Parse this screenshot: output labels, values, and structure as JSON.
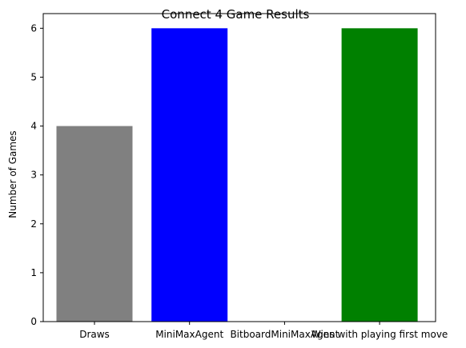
{
  "chart_data": {
    "type": "bar",
    "title": "Connect 4 Game Results",
    "xlabel": "",
    "ylabel": "Number of Games",
    "categories": [
      "Draws",
      "MiniMaxAgent",
      "BitboardMiniMaxAgent",
      "Wins with playing first move"
    ],
    "values": [
      4,
      6,
      0,
      6
    ],
    "colors": [
      "#808080",
      "#0000ff",
      "#ffffff",
      "#008000"
    ],
    "ylim": [
      0,
      6.3
    ],
    "yticks": [
      0,
      1,
      2,
      3,
      4,
      5,
      6
    ],
    "grid": false
  }
}
